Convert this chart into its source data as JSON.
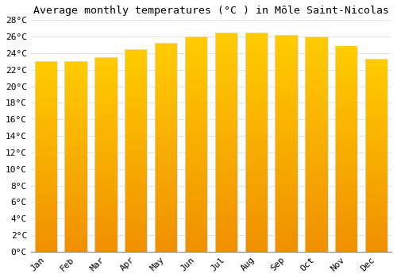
{
  "title": "Average monthly temperatures (°C ) in Môle Saint-Nicolas",
  "months": [
    "Jan",
    "Feb",
    "Mar",
    "Apr",
    "May",
    "Jun",
    "Jul",
    "Aug",
    "Sep",
    "Oct",
    "Nov",
    "Dec"
  ],
  "values": [
    23.0,
    23.0,
    23.5,
    24.5,
    25.2,
    26.0,
    26.5,
    26.5,
    26.2,
    26.0,
    24.8,
    23.3
  ],
  "bar_color_top": "#FFCC00",
  "bar_color_bottom": "#F09000",
  "bar_edge_color": "#DDDDDD",
  "background_color": "#FFFFFF",
  "grid_color": "#DDDDDD",
  "ylim": [
    0,
    28
  ],
  "ytick_step": 2,
  "title_fontsize": 9.5,
  "tick_fontsize": 8,
  "font_family": "monospace"
}
